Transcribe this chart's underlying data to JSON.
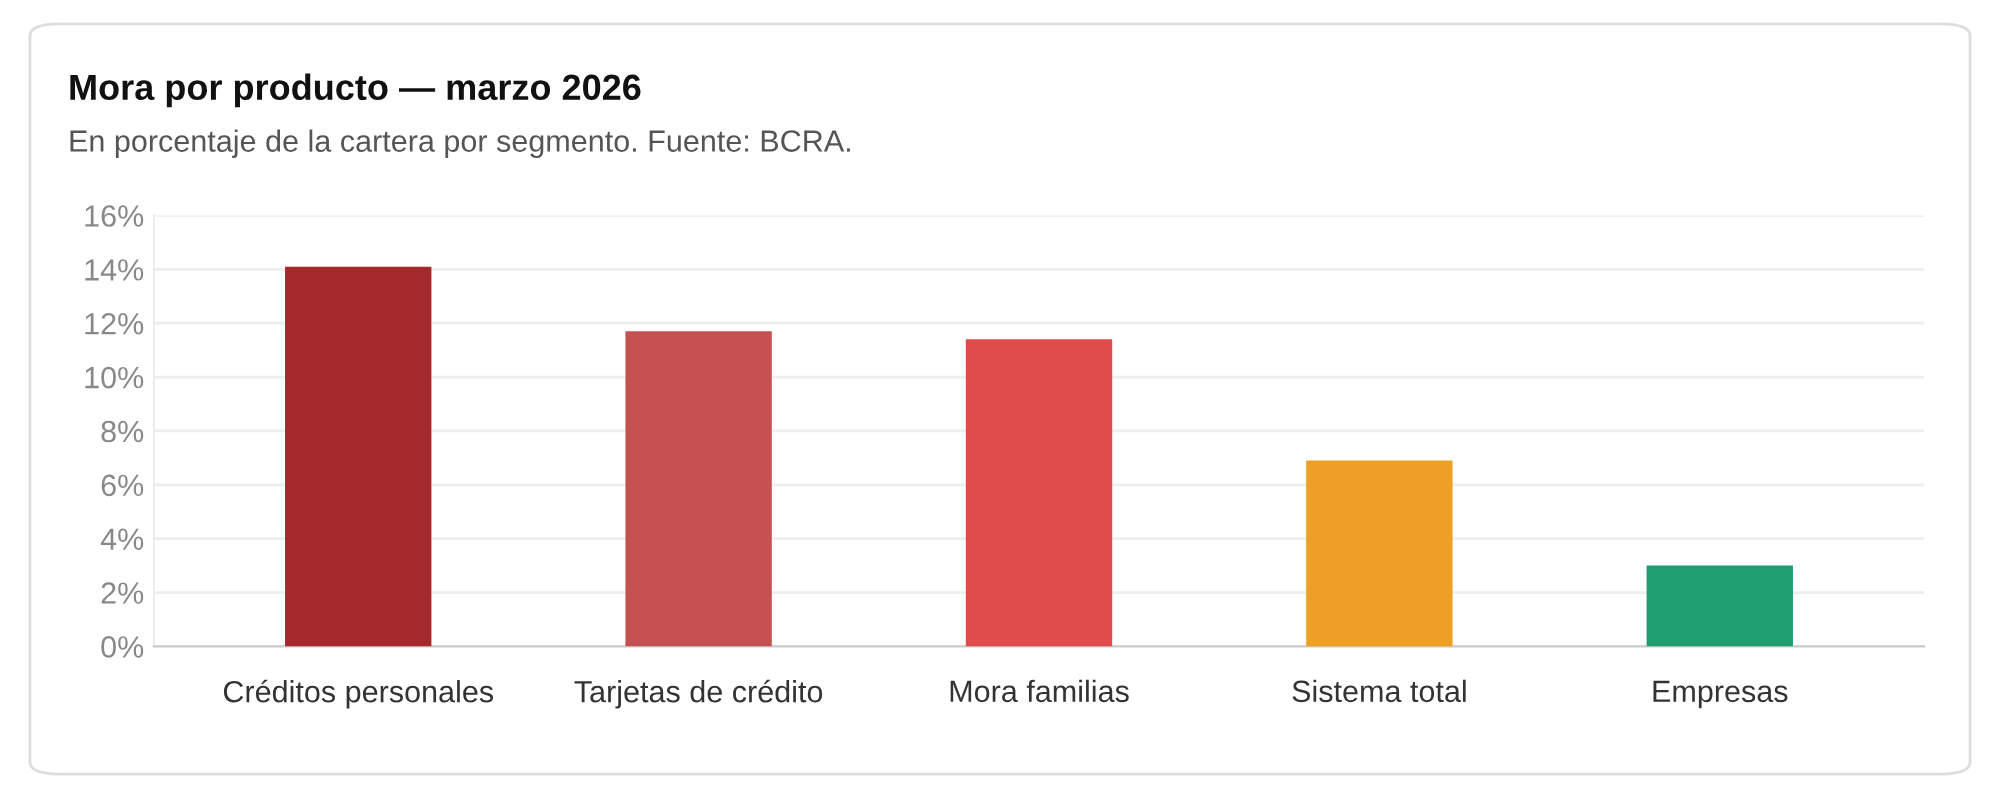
{
  "chart_data": {
    "type": "bar",
    "title": "Mora por producto — marzo 2026",
    "subtitle": "En porcentaje de la cartera por segmento. Fuente: BCRA.",
    "categories": [
      "Créditos personales",
      "Tarjetas de crédito",
      "Mora familias",
      "Sistema total",
      "Empresas"
    ],
    "values": [
      14.1,
      11.7,
      11.4,
      6.9,
      3.0
    ],
    "colors": [
      "#a3292b",
      "#c55050",
      "#e04b4b",
      "#eea026",
      "#1f9e72"
    ],
    "ylim": [
      0,
      16
    ],
    "yticks": [
      {
        "value": 0,
        "label": "0%"
      },
      {
        "value": 2,
        "label": "2%"
      },
      {
        "value": 4,
        "label": "4%"
      },
      {
        "value": 6,
        "label": "6%"
      },
      {
        "value": 8,
        "label": "8%"
      },
      {
        "value": 10,
        "label": "10%"
      },
      {
        "value": 12,
        "label": "12%"
      },
      {
        "value": 14,
        "label": "14%"
      },
      {
        "value": 16,
        "label": "16%"
      }
    ],
    "grid": "y",
    "legend": false
  }
}
